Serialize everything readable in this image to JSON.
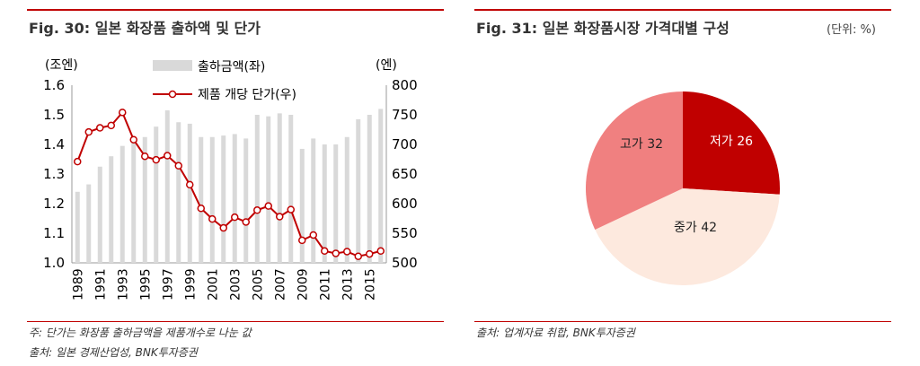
{
  "left": {
    "title": "Fig. 30: 일본 화장품 출하액 및 단가",
    "note1": "주: 단가는 화장품 출하금액을 제품개수로 나눈 값",
    "note2": "출처: 일본 경제산업성, BNK투자증권"
  },
  "right": {
    "title": "Fig. 31: 일본 화장품시장 가격대별 구성",
    "unit": "(단위: %)",
    "note1": "출처: 업계자료 취합, BNK투자증권"
  },
  "chart_data": [
    {
      "type": "bar+line",
      "title": "일본 화장품 출하액 및 단가",
      "x": [
        1989,
        1990,
        1991,
        1992,
        1993,
        1994,
        1995,
        1996,
        1997,
        1998,
        1999,
        2000,
        2001,
        2002,
        2003,
        2004,
        2005,
        2006,
        2007,
        2008,
        2009,
        2010,
        2011,
        2012,
        2013,
        2014,
        2015,
        2016
      ],
      "xtick_labels": [
        "1989",
        "1991",
        "1993",
        "1995",
        "1997",
        "1999",
        "2001",
        "2003",
        "2005",
        "2007",
        "2009",
        "2011",
        "2013",
        "2015"
      ],
      "y_left_label": "(조엔)",
      "y_right_label": "(엔)",
      "ylim_left": [
        1.0,
        1.6
      ],
      "ylim_right": [
        500,
        800
      ],
      "yticks_left": [
        "1.0",
        "1.1",
        "1.2",
        "1.3",
        "1.4",
        "1.5",
        "1.6"
      ],
      "yticks_right": [
        "500",
        "550",
        "600",
        "650",
        "700",
        "750",
        "800"
      ],
      "series": [
        {
          "name": "출하금액(좌)",
          "axis": "left",
          "kind": "bar",
          "color": "#d9d9d9",
          "values": [
            1.24,
            1.265,
            1.325,
            1.36,
            1.395,
            1.41,
            1.425,
            1.46,
            1.515,
            1.475,
            1.47,
            1.425,
            1.425,
            1.43,
            1.435,
            1.42,
            1.5,
            1.495,
            1.505,
            1.5,
            1.385,
            1.42,
            1.4,
            1.4,
            1.425,
            1.485,
            1.5,
            1.52
          ]
        },
        {
          "name": "제품 개당 단가(우)",
          "axis": "right",
          "kind": "line",
          "color": "#c00000",
          "values": [
            671,
            721,
            728,
            732,
            754,
            708,
            680,
            674,
            681,
            664,
            632,
            592,
            574,
            559,
            577,
            569,
            589,
            596,
            578,
            590,
            538,
            547,
            520,
            516,
            519,
            511,
            515,
            520
          ]
        }
      ]
    },
    {
      "type": "pie",
      "title": "일본 화장품시장 가격대별 구성",
      "slices": [
        {
          "label": "저가",
          "value": 26,
          "color": "#c00000"
        },
        {
          "label": "중가",
          "value": 42,
          "color": "#fde9de"
        },
        {
          "label": "고가",
          "value": 32,
          "color": "#f08080"
        }
      ]
    }
  ]
}
